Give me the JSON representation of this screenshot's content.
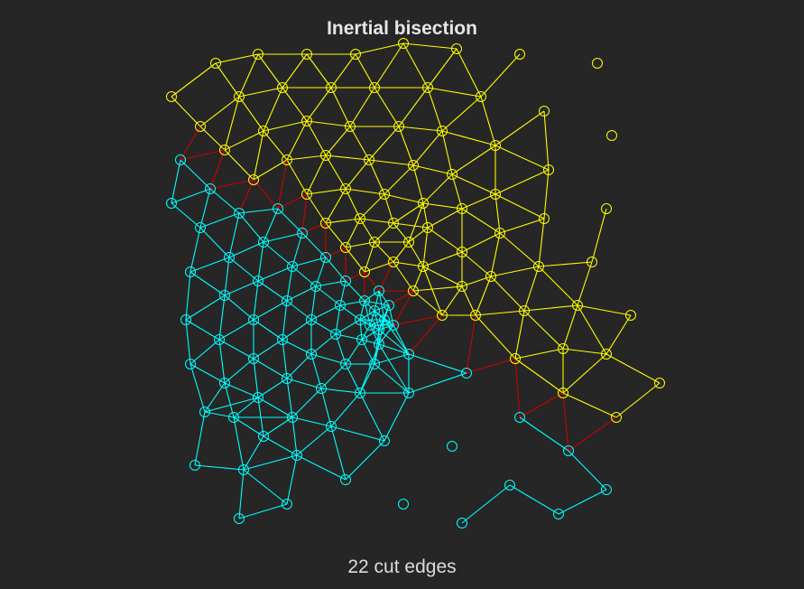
{
  "title": "Inertial bisection",
  "caption": "22 cut edges",
  "colors": {
    "background": "#262626",
    "part_a": "#ffff00",
    "part_b": "#00ffff",
    "cut_edge": "#cc0000"
  }
}
